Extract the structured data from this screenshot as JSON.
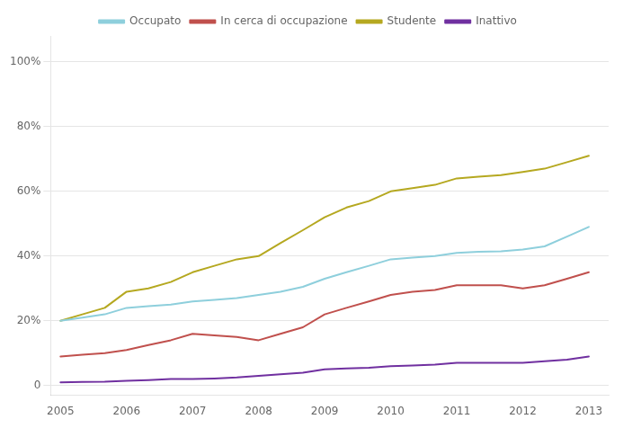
{
  "chart_data": {
    "type": "line",
    "x": [
      2005,
      2005.33,
      2005.67,
      2006,
      2006.33,
      2006.67,
      2007,
      2007.33,
      2007.67,
      2008,
      2008.33,
      2008.67,
      2009,
      2009.33,
      2009.67,
      2010,
      2010.33,
      2010.67,
      2011,
      2011.33,
      2011.67,
      2012,
      2012.33,
      2012.67,
      2013
    ],
    "series": [
      {
        "name": "Occupato",
        "color": "#8ecfdc",
        "values": [
          20,
          21,
          22,
          24,
          24.5,
          25,
          26,
          26.5,
          27,
          28,
          29,
          30.5,
          33,
          35,
          37,
          39,
          39.5,
          40,
          41,
          41.3,
          41.5,
          42,
          43,
          46,
          49
        ]
      },
      {
        "name": "In cerca di occupazione",
        "color": "#c0504d",
        "values": [
          9,
          9.5,
          10,
          11,
          12.5,
          14,
          16,
          15.5,
          15,
          14,
          16,
          18,
          22,
          24,
          26,
          28,
          29,
          29.5,
          31,
          31,
          31,
          30,
          31,
          33,
          35
        ]
      },
      {
        "name": "Studente",
        "color": "#b5a820",
        "values": [
          20,
          22,
          24,
          29,
          30,
          32,
          35,
          37,
          39,
          40,
          44,
          48,
          52,
          55,
          57,
          60,
          61,
          62,
          64,
          64.5,
          65,
          66,
          67,
          69,
          71
        ]
      },
      {
        "name": "Inattivo",
        "color": "#7030a0",
        "values": [
          1,
          1.1,
          1.2,
          1.5,
          1.7,
          2,
          2,
          2.2,
          2.5,
          3,
          3.5,
          4,
          5,
          5.3,
          5.5,
          6,
          6.2,
          6.5,
          7,
          7,
          7,
          7,
          7.5,
          8,
          9
        ]
      }
    ],
    "xlim": [
      2004.85,
      2013.3
    ],
    "xticks": [
      2005,
      2006,
      2007,
      2008,
      2009,
      2010,
      2011,
      2012,
      2013
    ],
    "ylim": [
      -3,
      108
    ],
    "yticks": [
      0,
      {
        "value": 20,
        "label": "20%"
      },
      {
        "value": 40,
        "label": "40%"
      },
      {
        "value": 60,
        "label": "60%"
      },
      {
        "value": 80,
        "label": "80%"
      },
      {
        "value": 100,
        "label": "100%"
      }
    ],
    "grid": "y",
    "legend": "top"
  }
}
